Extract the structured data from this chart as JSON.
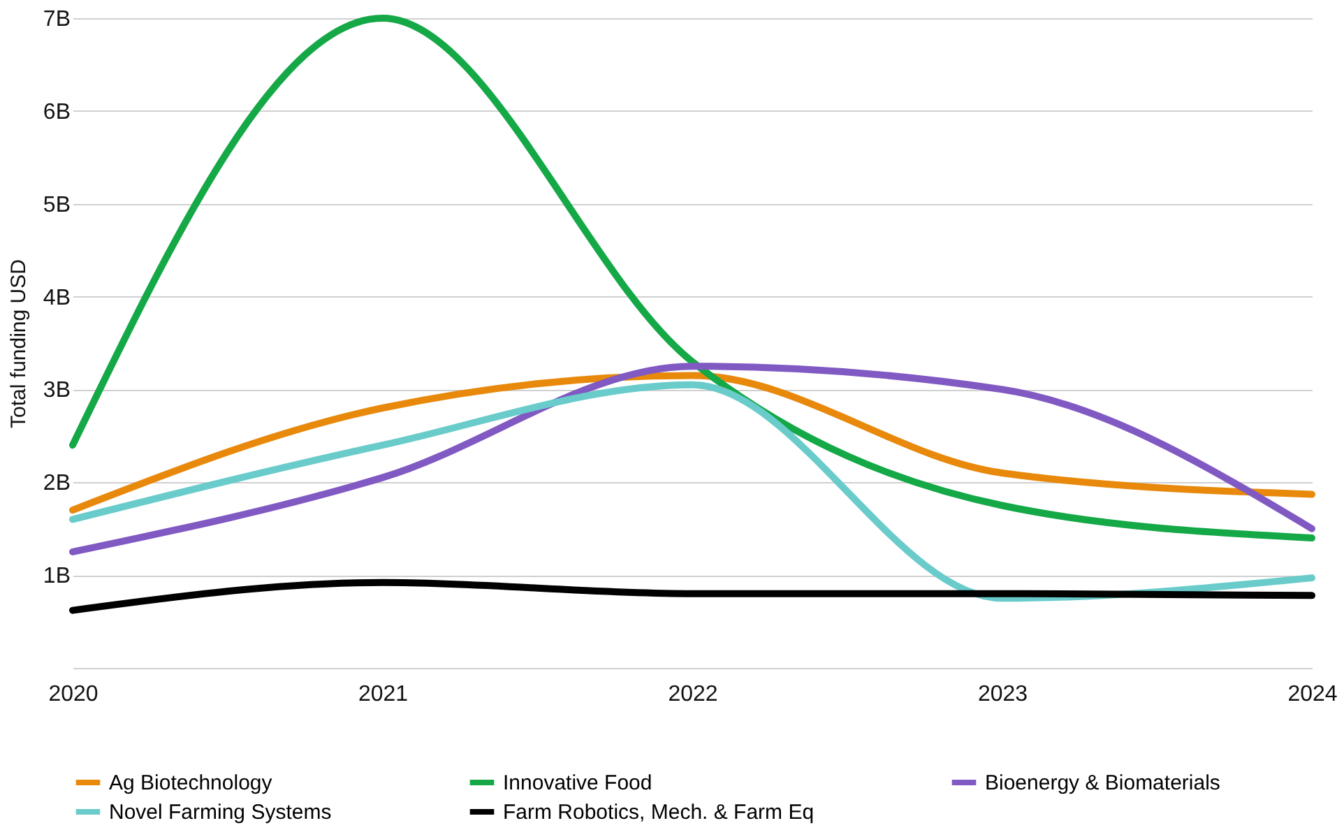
{
  "chart_data": {
    "type": "line",
    "ylabel": "Total funding USD",
    "x": [
      2020,
      2021,
      2022,
      2023,
      2024
    ],
    "series": [
      {
        "name": "Ag Biotechnology",
        "color": "#e8890c",
        "values": [
          1.7,
          2.8,
          3.15,
          2.1,
          1.87
        ]
      },
      {
        "name": "Innovative Food",
        "color": "#14a846",
        "values": [
          2.4,
          7.0,
          3.3,
          1.75,
          1.4
        ]
      },
      {
        "name": "Bioenergy & Biomaterials",
        "color": "#8159c2",
        "values": [
          1.25,
          2.05,
          3.25,
          3.0,
          1.5
        ]
      },
      {
        "name": "Novel Farming Systems",
        "color": "#6acbcb",
        "values": [
          1.6,
          2.4,
          3.05,
          0.75,
          0.97
        ]
      },
      {
        "name": "Farm Robotics, Mech. & Farm Eq",
        "color": "#000000",
        "values": [
          0.62,
          0.92,
          0.8,
          0.8,
          0.78
        ]
      }
    ],
    "xlim": [
      2020,
      2024
    ],
    "xticks": [
      2020,
      2021,
      2022,
      2023,
      2024
    ],
    "ylim": [
      0,
      7
    ],
    "yticks": [
      {
        "value": 0,
        "label": null
      },
      {
        "value": 1,
        "label": "1B"
      },
      {
        "value": 2,
        "label": "2B"
      },
      {
        "value": 3,
        "label": "3B"
      },
      {
        "value": 4,
        "label": "4B"
      },
      {
        "value": 5,
        "label": "5B"
      },
      {
        "value": 6,
        "label": "6B"
      },
      {
        "value": 7,
        "label": "7B"
      }
    ],
    "grid": "y",
    "legend": "bottom",
    "marker": "none",
    "line_style": "solid"
  }
}
